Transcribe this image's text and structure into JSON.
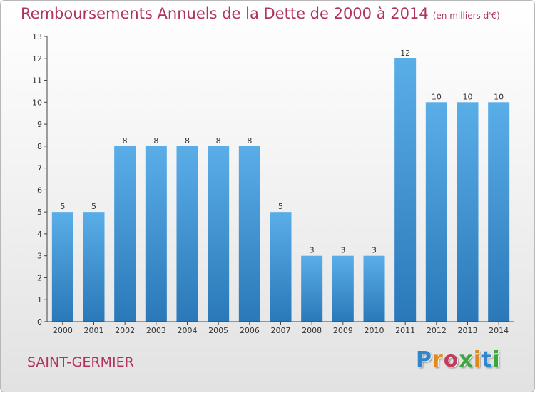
{
  "chart_data": {
    "type": "bar",
    "title": "Remboursements Annuels de la Dette de 2000 à 2014",
    "unit": "(en milliers d'€)",
    "categories": [
      "2000",
      "2001",
      "2002",
      "2003",
      "2004",
      "2005",
      "2006",
      "2007",
      "2008",
      "2009",
      "2010",
      "2011",
      "2012",
      "2013",
      "2014"
    ],
    "values": [
      5,
      5,
      8,
      8,
      8,
      8,
      8,
      5,
      3,
      3,
      3,
      12,
      10,
      10,
      10
    ],
    "ylim": [
      0,
      13
    ],
    "yticks": [
      "0",
      "1",
      "2",
      "3",
      "4",
      "5",
      "6",
      "7",
      "8",
      "9",
      "10",
      "11",
      "12",
      "13"
    ],
    "xlabel": "",
    "ylabel": "",
    "grid": false,
    "bar_color": "#3f94d6"
  },
  "footer": {
    "city": "SAINT-GERMIER"
  },
  "logo": {
    "letters": [
      {
        "ch": "P",
        "color": "#2e86d1"
      },
      {
        "ch": "r",
        "color": "#e08a1e"
      },
      {
        "ch": "o",
        "color": "#c33c5a"
      },
      {
        "ch": "x",
        "color": "#3aa83a"
      },
      {
        "ch": "i",
        "color": "#e08a1e"
      },
      {
        "ch": "t",
        "color": "#2e86d1"
      },
      {
        "ch": "i",
        "color": "#3aa83a"
      }
    ]
  },
  "colors": {
    "title": "#b0335f",
    "axis": "#333333"
  }
}
